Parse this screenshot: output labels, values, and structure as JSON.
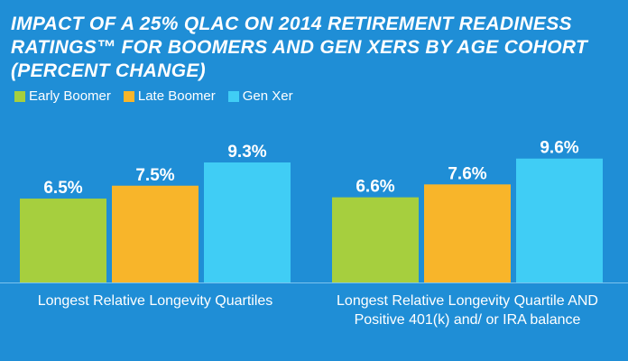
{
  "chart_data": {
    "type": "bar",
    "title": "IMPACT OF A 25% QLAC ON 2014 RETIREMENT READINESS RATINGS™ FOR BOOMERS AND GEN XERS BY AGE COHORT (PERCENT CHANGE)",
    "xlabel": "",
    "ylabel": "",
    "categories": [
      "Longest Relative Longevity Quartiles",
      "Longest Relative Longevity Quartile AND Positive 401(k) and/ or IRA balance"
    ],
    "series": [
      {
        "name": "Early Boomer",
        "color": "#a6cf3e",
        "values": [
          6.5,
          6.6
        ],
        "labels": [
          "6.5%",
          "6.6%"
        ]
      },
      {
        "name": "Late Boomer",
        "color": "#f8b52a",
        "values": [
          7.5,
          7.6
        ],
        "labels": [
          "7.5%",
          "7.6%"
        ]
      },
      {
        "name": "Gen Xer",
        "color": "#40cdf5",
        "values": [
          9.3,
          9.6
        ],
        "labels": [
          "9.3%",
          "9.6%"
        ]
      }
    ],
    "ylim": [
      0,
      10.5
    ],
    "grid": false,
    "legend_position": "top-left"
  }
}
